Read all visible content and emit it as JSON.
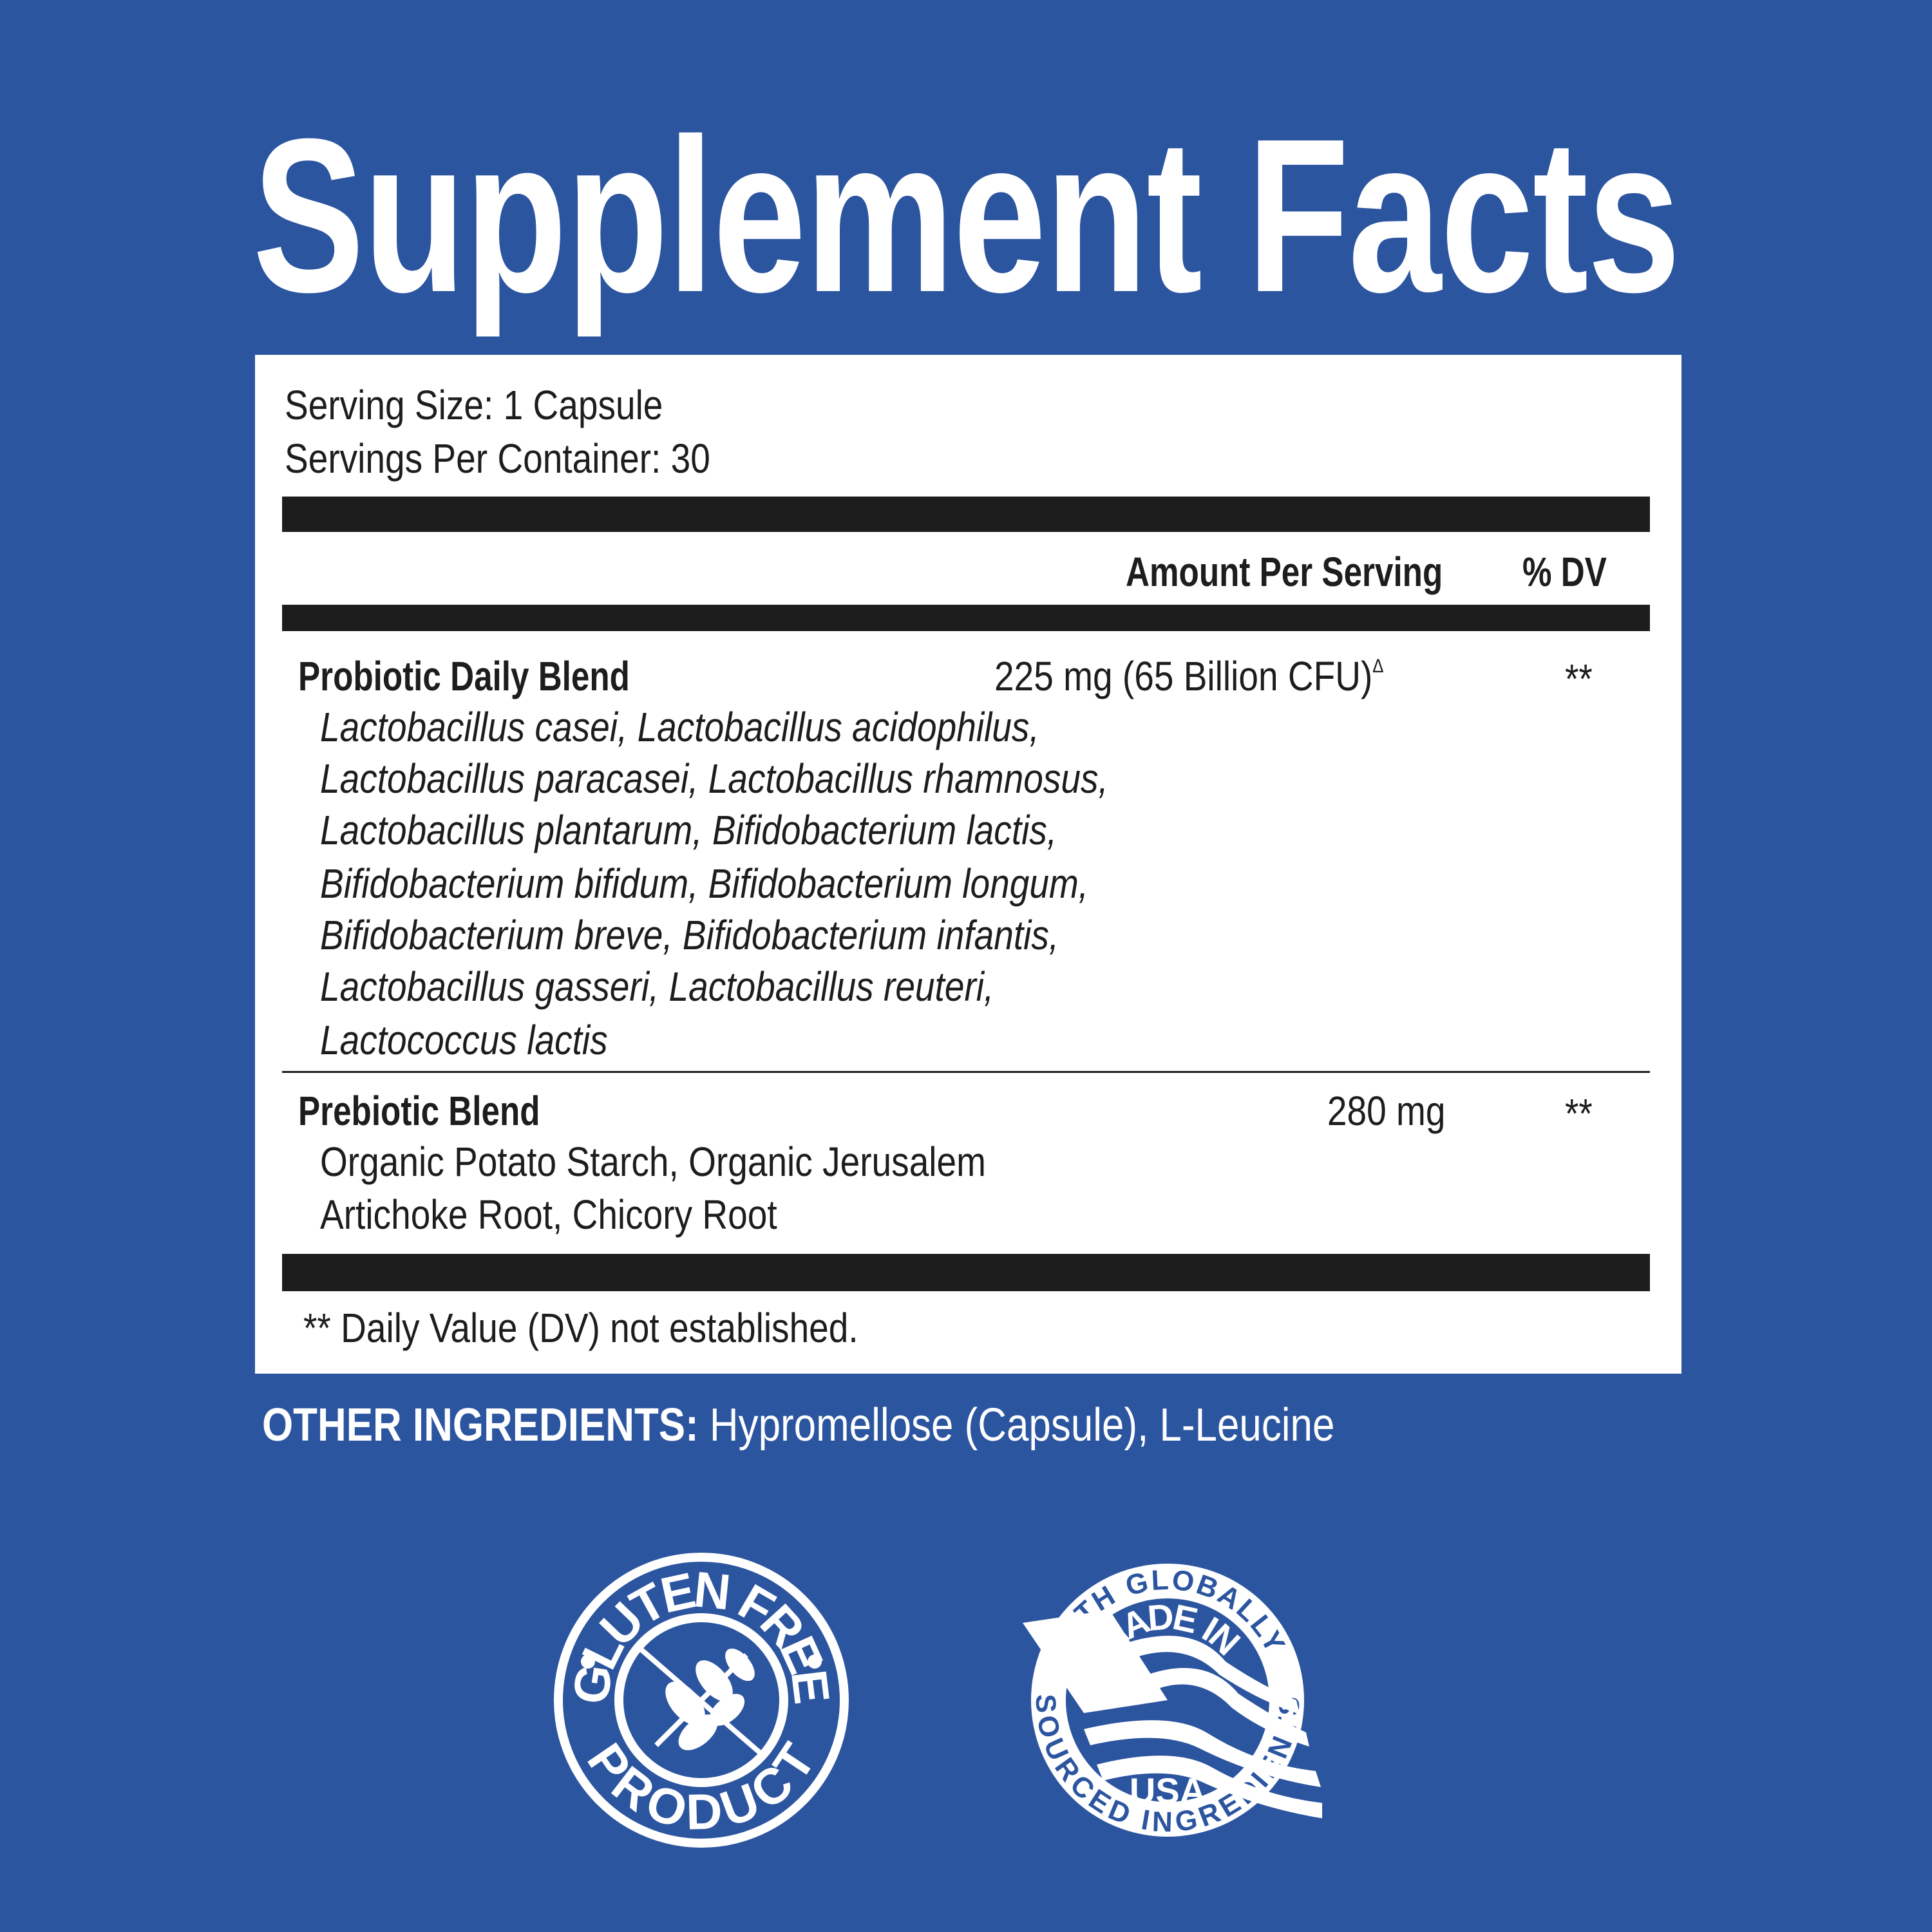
{
  "title": "Supplement Facts",
  "serving": {
    "size": "Serving Size: 1 Capsule",
    "per_container": "Servings Per Container: 30"
  },
  "header": {
    "amount": "Amount Per Serving",
    "dv": "% DV"
  },
  "rows": [
    {
      "name": "Probiotic Daily Blend",
      "amount": "225 mg (65 Billion CFU)",
      "amount_mark": "Δ",
      "dv": "**",
      "lines": [
        "Lactobacillus casei, Lactobacillus acidophilus,",
        "Lactobacillus paracasei, Lactobacillus rhamnosus,",
        "Lactobacillus plantarum, Bifidobacterium lactis,",
        "Bifidobacterium bifidum, Bifidobacterium longum,",
        "Bifidobacterium breve, Bifidobacterium infantis,",
        "Lactobacillus gasseri, Lactobacillus reuteri,",
        "Lactococcus lactis"
      ]
    },
    {
      "name": "Prebiotic Blend",
      "amount": "280 mg",
      "dv": "**",
      "lines": [
        "Organic Potato Starch, Organic Jerusalem",
        "Artichoke Root, Chicory Root"
      ]
    }
  ],
  "footnote": "** Daily Value (DV) not established.",
  "other_ingredients": {
    "label": "OTHER INGREDIENTS:",
    "value": " Hypromellose (Capsule), L-Leucine"
  },
  "badges": {
    "gluten": {
      "top": "GLUTEN FREE",
      "bottom": "PRODUCT",
      "icon": "wheat-crossed-icon"
    },
    "usa": {
      "outer_top": "WITH GLOBALLY",
      "outer_bottom": "SOURCED INGREDIENTS",
      "inner_top": "MADE IN",
      "inner_bottom": "USA",
      "icon": "us-flag-icon"
    }
  },
  "colors": {
    "background": "#2c55a0",
    "panel": "#ffffff",
    "ink": "#1d1d1d"
  }
}
